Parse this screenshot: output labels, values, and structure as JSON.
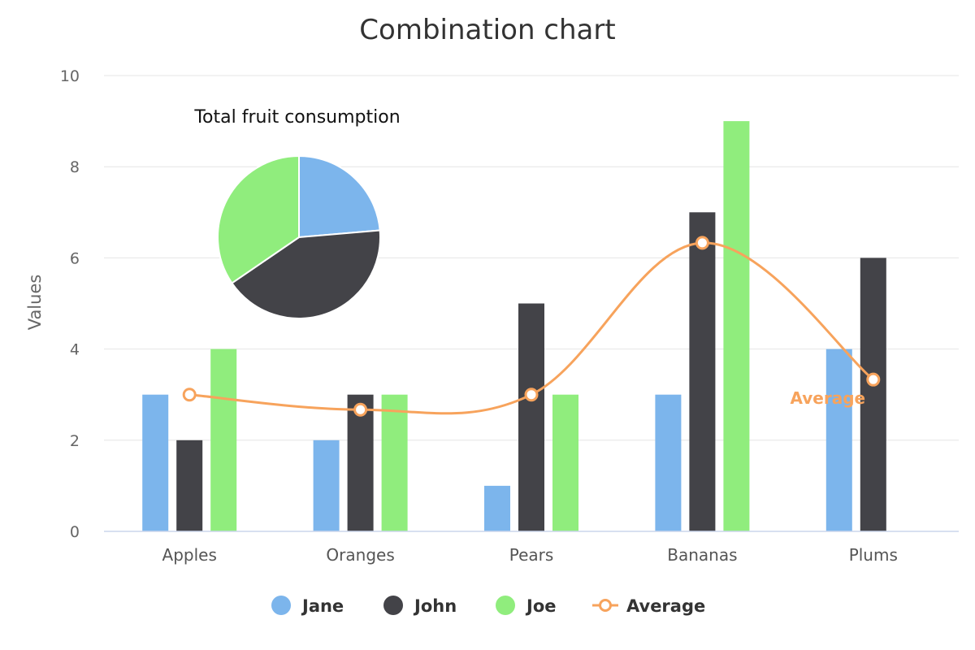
{
  "chart_data": {
    "type": "bar",
    "title": "Combination chart",
    "ylabel": "Values",
    "xlabel": "",
    "ylim": [
      0,
      10
    ],
    "yticks": [
      0,
      2,
      4,
      6,
      8,
      10
    ],
    "grid": true,
    "categories": [
      "Apples",
      "Oranges",
      "Pears",
      "Bananas",
      "Plums"
    ],
    "series": [
      {
        "name": "Jane",
        "type": "bar",
        "color": "#7cb5ec",
        "values": [
          3,
          2,
          1,
          3,
          4
        ]
      },
      {
        "name": "John",
        "type": "bar",
        "color": "#434348",
        "values": [
          2,
          3,
          5,
          7,
          6
        ]
      },
      {
        "name": "Joe",
        "type": "bar",
        "color": "#90ed7d",
        "values": [
          4,
          3,
          3,
          9,
          0
        ]
      },
      {
        "name": "Average",
        "type": "spline",
        "color": "#f7a35c",
        "values": [
          3,
          2.67,
          3,
          6.33,
          3.33
        ]
      }
    ],
    "pie": {
      "title": "Total fruit consumption",
      "slices": [
        {
          "name": "Jane",
          "value": 13,
          "color": "#7cb5ec"
        },
        {
          "name": "John",
          "value": 23,
          "color": "#434348"
        },
        {
          "name": "Joe",
          "value": 19,
          "color": "#90ed7d"
        }
      ]
    },
    "annotation": {
      "text": "Average",
      "color": "#f7a35c"
    },
    "legend": {
      "position": "bottom-center",
      "items": [
        {
          "name": "Jane",
          "symbol": "circle",
          "color": "#7cb5ec"
        },
        {
          "name": "John",
          "symbol": "circle",
          "color": "#434348"
        },
        {
          "name": "Joe",
          "symbol": "circle",
          "color": "#90ed7d"
        },
        {
          "name": "Average",
          "symbol": "line-marker",
          "color": "#f7a35c"
        }
      ]
    }
  }
}
